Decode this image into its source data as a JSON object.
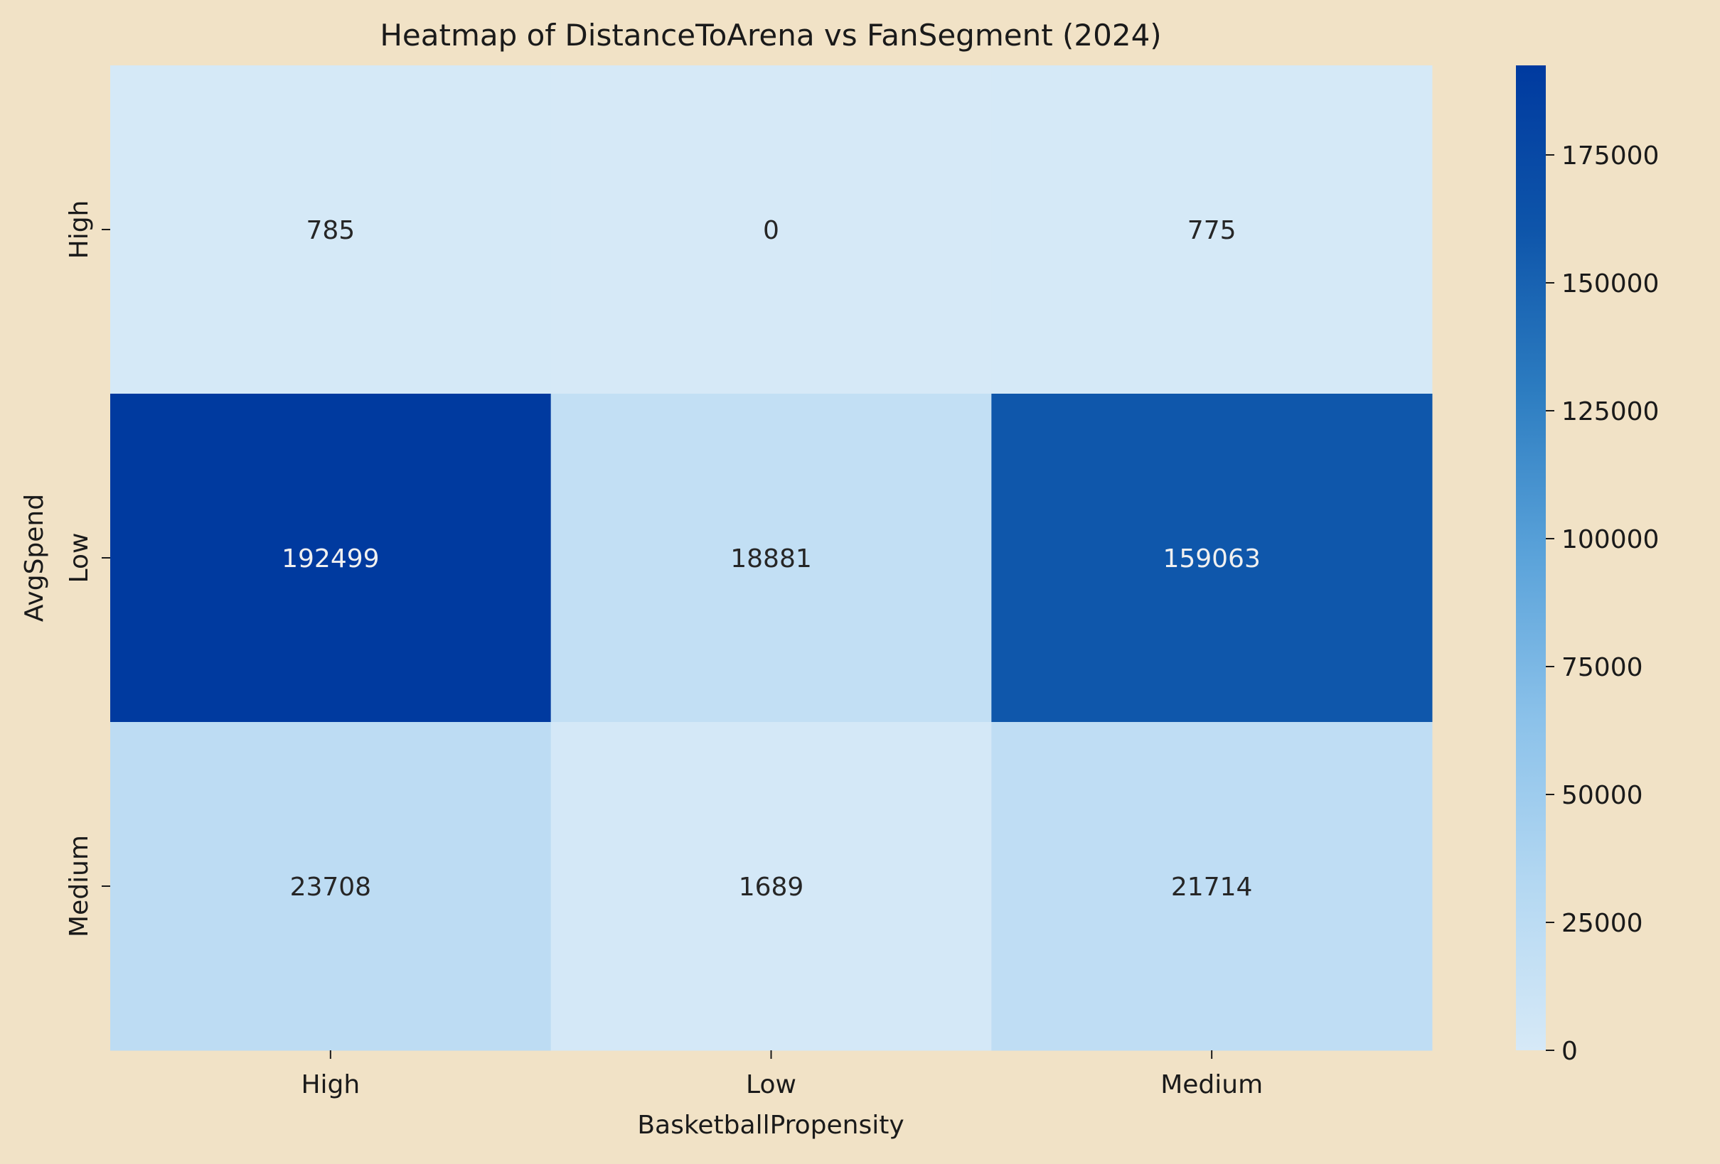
{
  "chart_data": {
    "type": "heatmap",
    "title": "Heatmap of DistanceToArena vs FanSegment (2024)",
    "xlabel": "BasketballPropensity",
    "ylabel": "AvgSpend",
    "x_categories": [
      "High",
      "Low",
      "Medium"
    ],
    "y_categories": [
      "High",
      "Low",
      "Medium"
    ],
    "values": [
      [
        785,
        0,
        775
      ],
      [
        192499,
        18881,
        159063
      ],
      [
        23708,
        1689,
        21714
      ]
    ],
    "colorbar": {
      "range": [
        0,
        192499
      ],
      "ticks": [
        0,
        25000,
        50000,
        75000,
        100000,
        125000,
        150000,
        175000
      ],
      "tick_labels": [
        "0",
        "25000",
        "50000",
        "75000",
        "100000",
        "125000",
        "150000",
        "175000"
      ]
    },
    "colormap": [
      "#d6e9f7",
      "#b4d8f2",
      "#8cc2ea",
      "#5ba3da",
      "#2d7dc1",
      "#0e55aa",
      "#003a9f"
    ],
    "background": "#f1e2c6",
    "annotation_colors": {
      "light": "#f0f0f0",
      "dark": "#262626"
    }
  }
}
